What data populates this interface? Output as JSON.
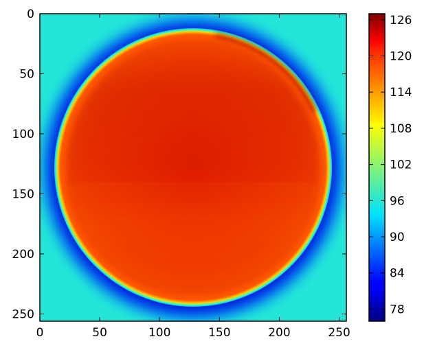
{
  "chart_data": {
    "type": "heatmap",
    "title": "",
    "xlabel": "",
    "ylabel": "",
    "xlim": [
      0,
      256
    ],
    "ylim": [
      256,
      0
    ],
    "x_ticks": [
      "0",
      "50",
      "100",
      "150",
      "200",
      "250"
    ],
    "y_ticks": [
      "0",
      "50",
      "100",
      "150",
      "200",
      "250"
    ],
    "colorbar": {
      "range": [
        76,
        127
      ],
      "ticks": [
        "78",
        "84",
        "90",
        "96",
        "102",
        "108",
        "114",
        "120",
        "126"
      ],
      "colormap": "jet"
    },
    "image_size": [
      256,
      256
    ],
    "disc": {
      "center_x": 128,
      "center_y": 128,
      "radius": 116,
      "interior_value": 120,
      "interior_upper_value": 123,
      "interior_lower_value": 118,
      "rim_value": 121,
      "dark_halo_value": 84,
      "background_value": 95
    }
  }
}
